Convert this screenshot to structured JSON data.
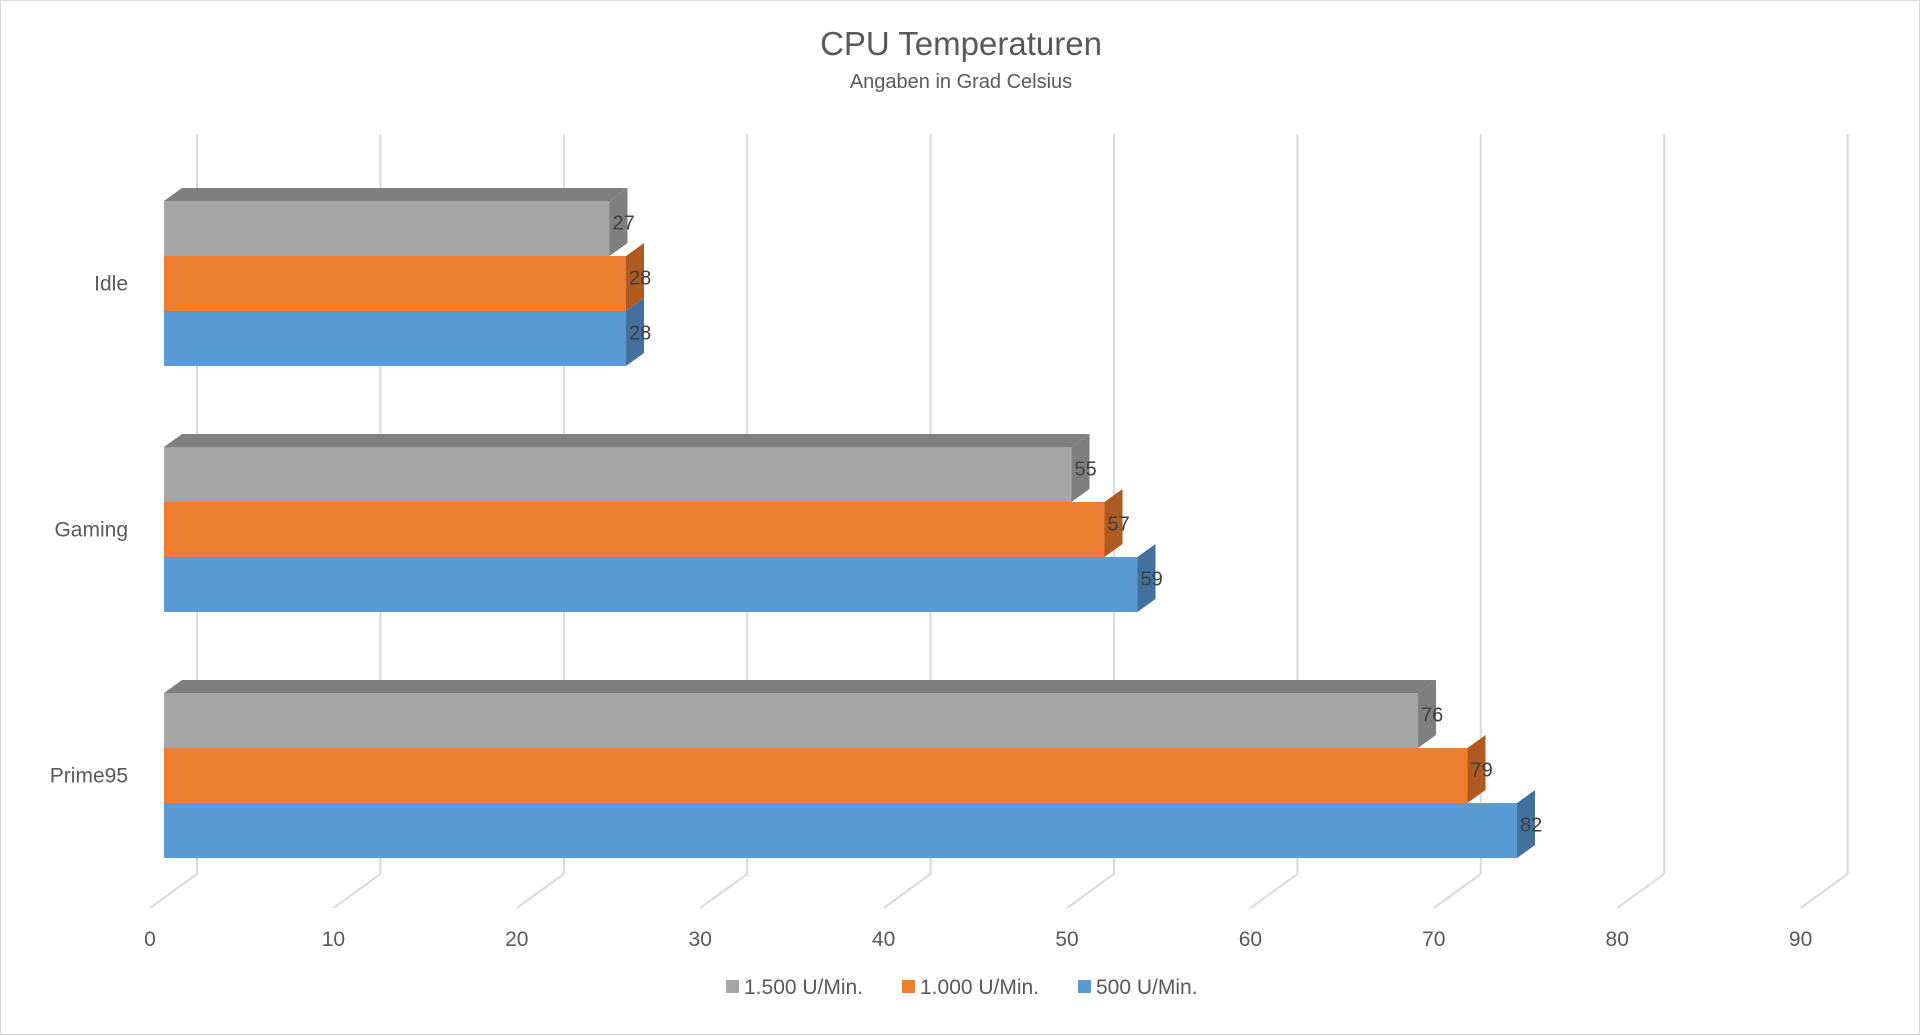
{
  "chart_data": {
    "type": "bar",
    "orientation": "horizontal",
    "style": "3d-clustered",
    "title": "CPU Temperaturen",
    "subtitle": "Angaben in Grad Celsius",
    "categories": [
      "Idle",
      "Gaming",
      "Prime95"
    ],
    "series": [
      {
        "name": "1.500 U/Min.",
        "values": [
          27,
          55,
          76
        ],
        "color": "#a5a5a5",
        "side_color": "#7f7f7f"
      },
      {
        "name": "1.000 U/Min.",
        "values": [
          28,
          57,
          79
        ],
        "color": "#ed7d31",
        "side_color": "#ae5a21"
      },
      {
        "name": "500 U/Min.",
        "values": [
          28,
          59,
          82
        ],
        "color": "#5b9bd5",
        "side_color": "#41719c"
      }
    ],
    "xlim": [
      0,
      90
    ],
    "xticks": [
      0,
      10,
      20,
      30,
      40,
      50,
      60,
      70,
      80,
      90
    ],
    "xlabel": "",
    "ylabel": "",
    "grid": true,
    "legend_position": "bottom",
    "colors": {
      "grid": "#d9d9d9",
      "text": "#595959",
      "data_label": "#404040"
    }
  }
}
